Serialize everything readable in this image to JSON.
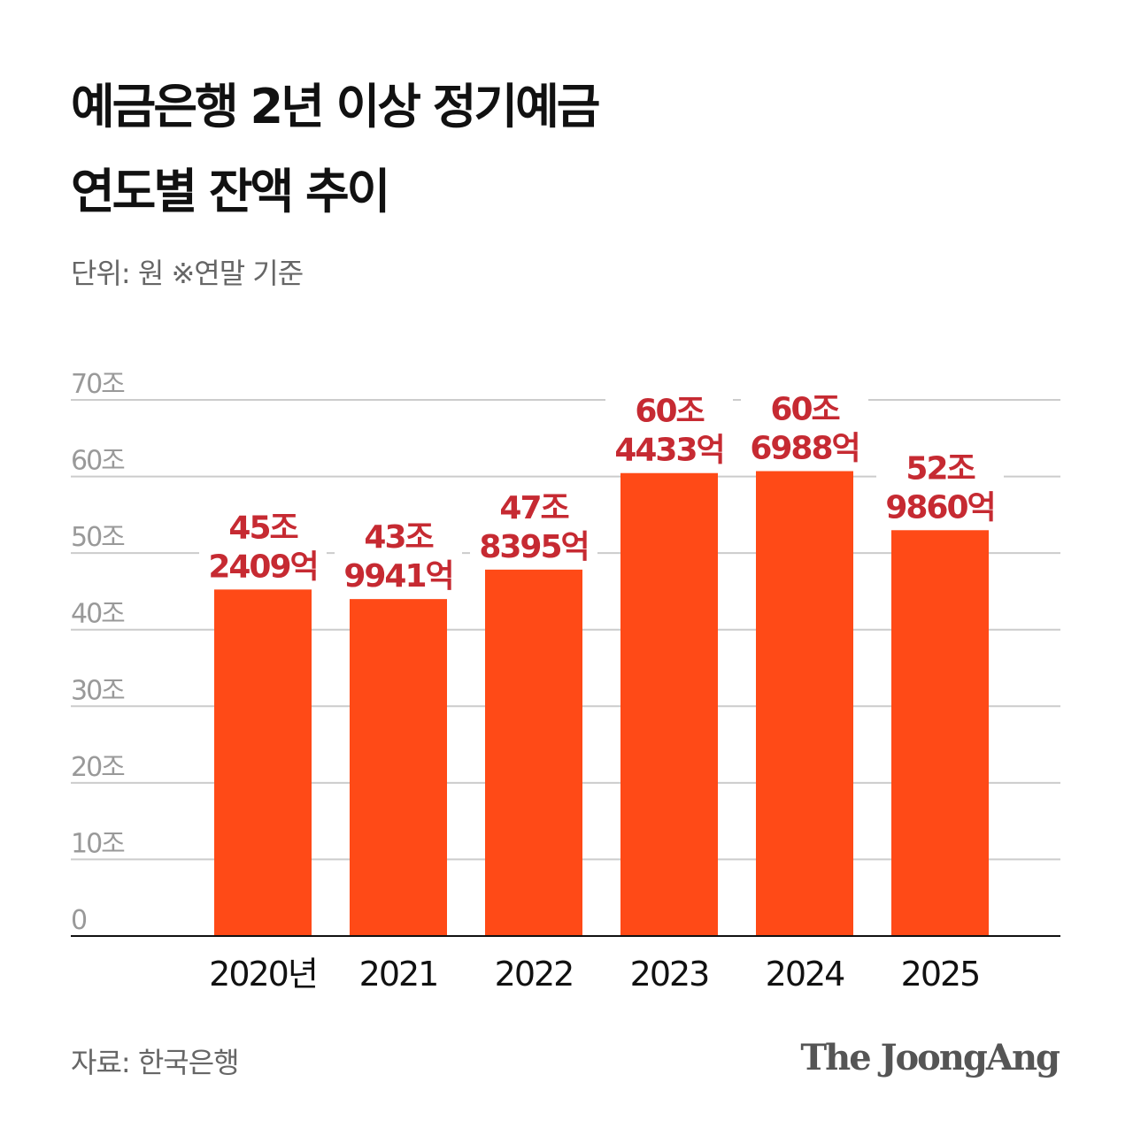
{
  "title_lines": [
    "예금은행 2년 이상 정기예금",
    "연도별 잔액 추이"
  ],
  "subtitle": "단위: 원   ※연말 기준",
  "source": "자료: 한국은행",
  "logo": "The JoongAng",
  "colors": {
    "bar": "#ff4a17",
    "label": "#c62a32",
    "grid": "#cccccc",
    "tick": "#999999"
  },
  "chart_data": {
    "type": "bar",
    "categories": [
      "2020년",
      "2021",
      "2022",
      "2023",
      "2024",
      "2025"
    ],
    "values": [
      45.2409,
      43.9941,
      47.8395,
      60.4433,
      60.6988,
      52.986
    ],
    "value_labels": [
      [
        "45조",
        "2409억"
      ],
      [
        "43조",
        "9941억"
      ],
      [
        "47조",
        "8395억"
      ],
      [
        "60조",
        "4433억"
      ],
      [
        "60조",
        "6988억"
      ],
      [
        "52조",
        "9860억"
      ]
    ],
    "unit": "조 원",
    "ylim": [
      0,
      70
    ],
    "yticks": [
      0,
      10,
      20,
      30,
      40,
      50,
      60,
      70
    ],
    "ytick_labels": [
      "0",
      "10조",
      "20조",
      "30조",
      "40조",
      "50조",
      "60조",
      "70조"
    ],
    "grid": true
  }
}
